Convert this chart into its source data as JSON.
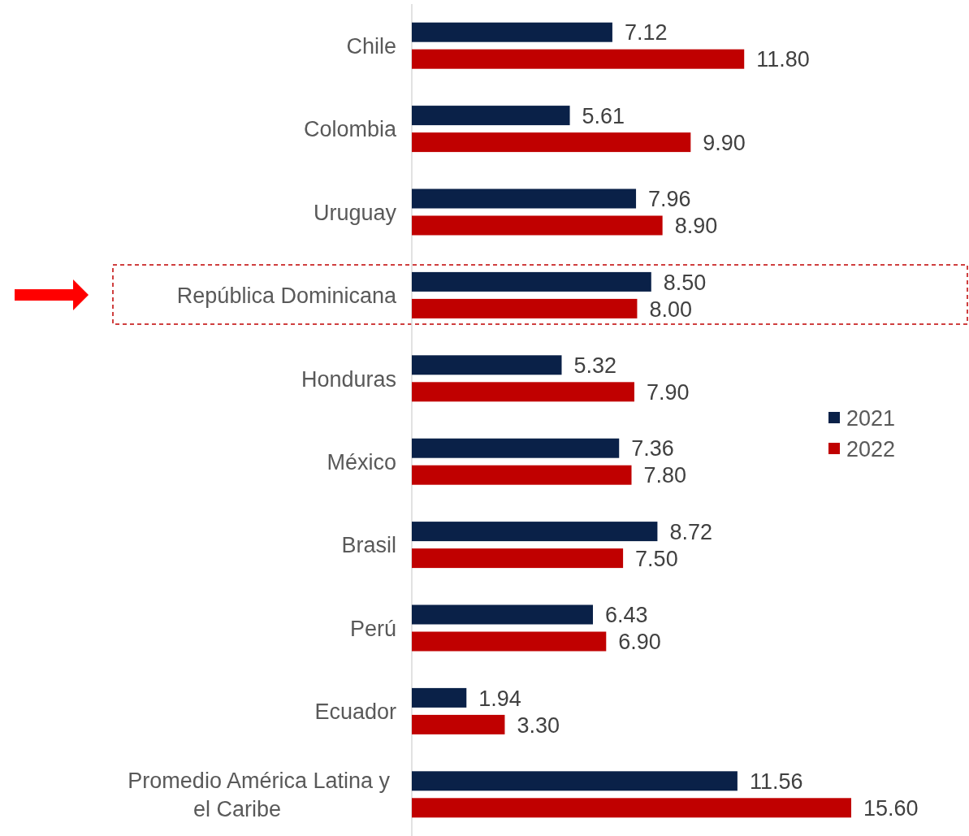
{
  "chart_data": {
    "type": "bar",
    "orientation": "horizontal",
    "categories": [
      "Chile",
      "Colombia",
      "Uruguay",
      "República Dominicana",
      "Honduras",
      "México",
      "Brasil",
      "Perú",
      "Ecuador",
      "Promedio América Latina y el Caribe"
    ],
    "series": [
      {
        "name": "2021",
        "color": "#0a2148",
        "values": [
          7.12,
          5.61,
          7.96,
          8.5,
          5.32,
          7.36,
          8.72,
          6.43,
          1.94,
          11.56
        ],
        "value_labels": [
          "7.12",
          "5.61",
          "7.96",
          "8.50",
          "5.32",
          "7.36",
          "8.72",
          "6.43",
          "1.94",
          "11.56"
        ]
      },
      {
        "name": "2022",
        "color": "#c00000",
        "values": [
          11.8,
          9.9,
          8.9,
          8.0,
          7.9,
          7.8,
          7.5,
          6.9,
          3.3,
          15.6
        ],
        "value_labels": [
          "11.80",
          "9.90",
          "8.90",
          "8.00",
          "7.90",
          "7.80",
          "7.50",
          "6.90",
          "3.30",
          "15.60"
        ]
      }
    ],
    "legend": "right"
  }
}
